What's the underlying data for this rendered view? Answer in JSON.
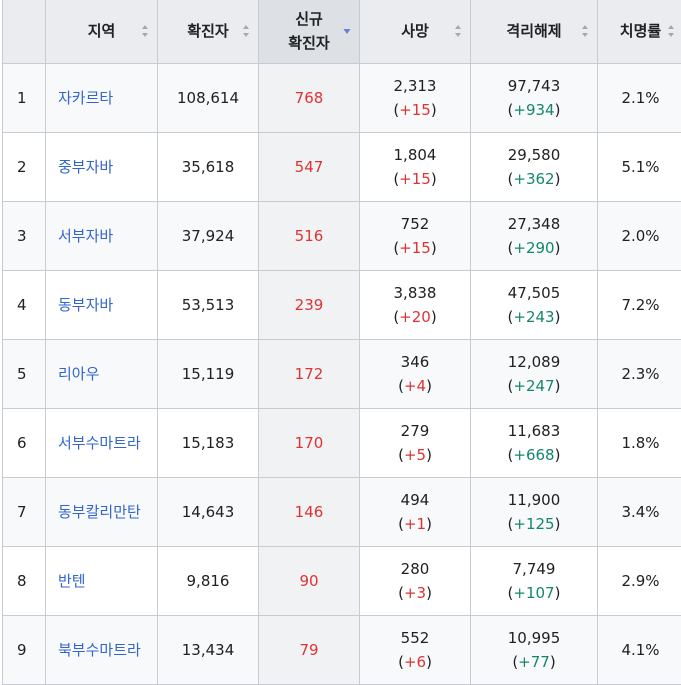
{
  "headers": {
    "region": "지역",
    "confirmed": "확진자",
    "new_line1": "신규",
    "new_line2": "확진자",
    "deaths": "사망",
    "recovered": "격리해제",
    "fatality": "치명률"
  },
  "colors": {
    "link": "#3366cc",
    "increase_red": "#dd3333",
    "increase_green": "#14866d",
    "header_bg": "#eaecf0",
    "sort_active": "#6b7dd6"
  },
  "rows": [
    {
      "rank": "1",
      "region": "자카르타",
      "confirmed": "108,614",
      "new": "768",
      "deaths": "2,313",
      "deaths_delta": "+15",
      "recovered": "97,743",
      "recovered_delta": "+934",
      "fatality": "2.1%"
    },
    {
      "rank": "2",
      "region": "중부자바",
      "confirmed": "35,618",
      "new": "547",
      "deaths": "1,804",
      "deaths_delta": "+15",
      "recovered": "29,580",
      "recovered_delta": "+362",
      "fatality": "5.1%"
    },
    {
      "rank": "3",
      "region": "서부자바",
      "confirmed": "37,924",
      "new": "516",
      "deaths": "752",
      "deaths_delta": "+15",
      "recovered": "27,348",
      "recovered_delta": "+290",
      "fatality": "2.0%"
    },
    {
      "rank": "4",
      "region": "동부자바",
      "confirmed": "53,513",
      "new": "239",
      "deaths": "3,838",
      "deaths_delta": "+20",
      "recovered": "47,505",
      "recovered_delta": "+243",
      "fatality": "7.2%"
    },
    {
      "rank": "5",
      "region": "리아우",
      "confirmed": "15,119",
      "new": "172",
      "deaths": "346",
      "deaths_delta": "+4",
      "recovered": "12,089",
      "recovered_delta": "+247",
      "fatality": "2.3%"
    },
    {
      "rank": "6",
      "region": "서부수마트라",
      "confirmed": "15,183",
      "new": "170",
      "deaths": "279",
      "deaths_delta": "+5",
      "recovered": "11,683",
      "recovered_delta": "+668",
      "fatality": "1.8%"
    },
    {
      "rank": "7",
      "region": "동부칼리만탄",
      "confirmed": "14,643",
      "new": "146",
      "deaths": "494",
      "deaths_delta": "+1",
      "recovered": "11,900",
      "recovered_delta": "+125",
      "fatality": "3.4%"
    },
    {
      "rank": "8",
      "region": "반텐",
      "confirmed": "9,816",
      "new": "90",
      "deaths": "280",
      "deaths_delta": "+3",
      "recovered": "7,749",
      "recovered_delta": "+107",
      "fatality": "2.9%"
    },
    {
      "rank": "9",
      "region": "북부수마트라",
      "confirmed": "13,434",
      "new": "79",
      "deaths": "552",
      "deaths_delta": "+6",
      "recovered": "10,995",
      "recovered_delta": "+77",
      "fatality": "4.1%"
    }
  ]
}
